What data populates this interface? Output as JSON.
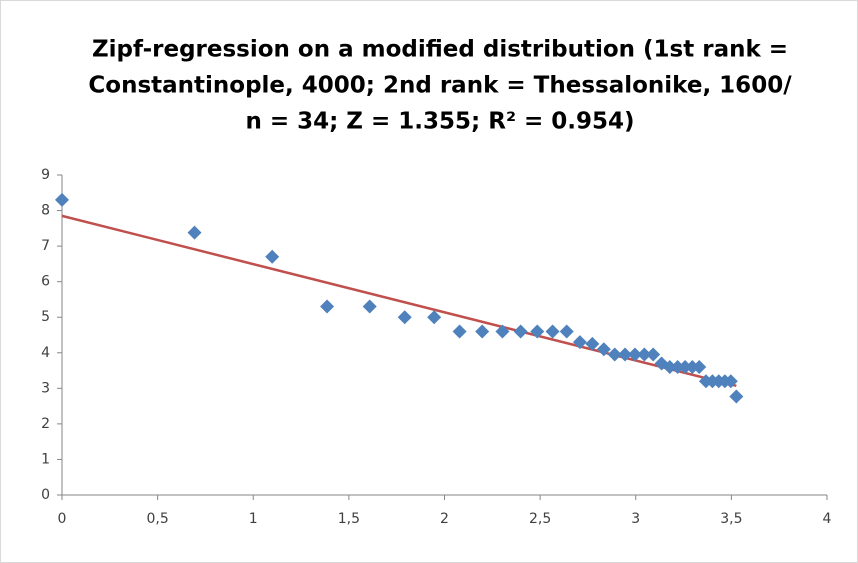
{
  "chart_data": {
    "type": "scatter",
    "title": [
      "Zipf-regression on a modified distribution (1st rank =",
      "Constantinople, 4000; 2nd rank = Thessalonike, 1600/",
      "n = 34; Z = 1.355; R² = 0.954)"
    ],
    "x": [
      0,
      0.693,
      1.099,
      1.386,
      1.609,
      1.792,
      1.946,
      2.079,
      2.197,
      2.303,
      2.398,
      2.485,
      2.565,
      2.639,
      2.708,
      2.773,
      2.833,
      2.89,
      2.944,
      2.996,
      3.045,
      3.091,
      3.135,
      3.178,
      3.219,
      3.258,
      3.296,
      3.332,
      3.367,
      3.401,
      3.434,
      3.466,
      3.497,
      3.526
    ],
    "values": [
      8.3,
      7.38,
      6.7,
      5.3,
      5.3,
      5.0,
      5.0,
      4.6,
      4.6,
      4.6,
      4.6,
      4.6,
      4.6,
      4.6,
      4.3,
      4.25,
      4.1,
      3.95,
      3.95,
      3.95,
      3.95,
      3.95,
      3.7,
      3.6,
      3.6,
      3.6,
      3.6,
      3.6,
      3.2,
      3.2,
      3.2,
      3.2,
      3.2,
      2.77
    ],
    "color": "#4f81bd",
    "trendline": {
      "x": [
        0,
        3.526
      ],
      "values": [
        7.85,
        3.07
      ],
      "color": "#c0504d"
    },
    "xlim": [
      0,
      4
    ],
    "xticks": [
      0,
      {
        "value": 0.5,
        "label": "0,5"
      },
      1,
      {
        "value": 1.5,
        "label": "1,5"
      },
      2,
      {
        "value": 2.5,
        "label": "2,5"
      },
      3,
      {
        "value": 3.5,
        "label": "3,5"
      },
      4
    ],
    "ylim": [
      0,
      9
    ],
    "yticks": [
      0,
      1,
      2,
      3,
      4,
      5,
      6,
      7,
      8,
      9
    ],
    "grid": false
  }
}
